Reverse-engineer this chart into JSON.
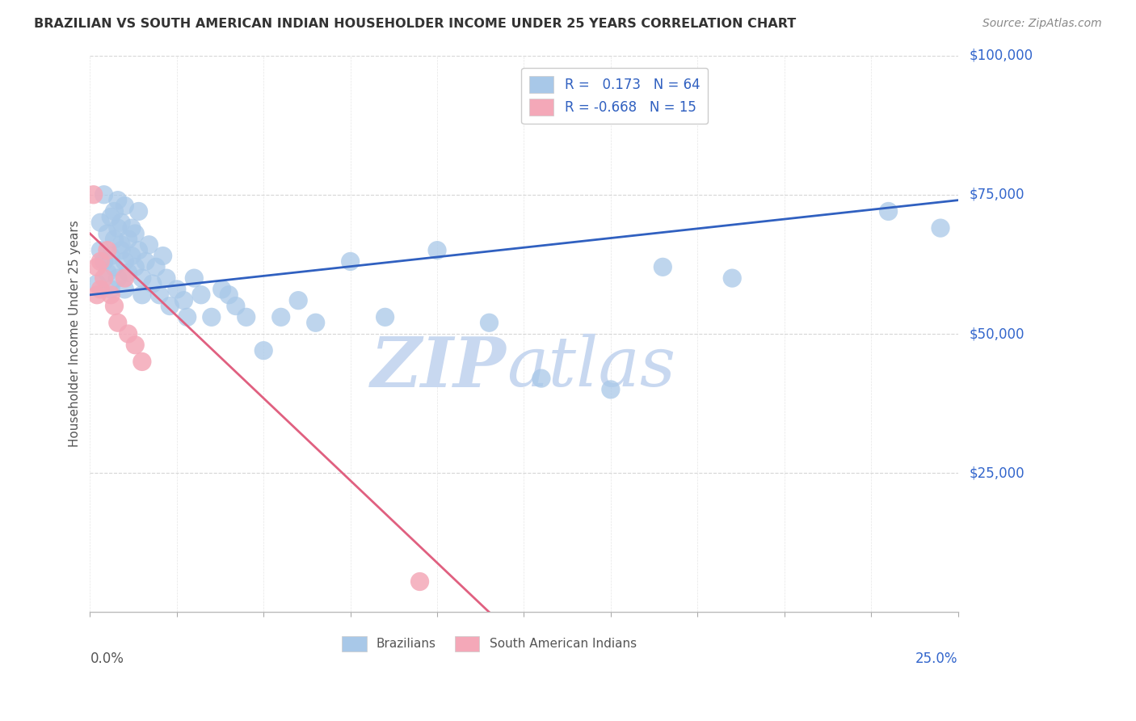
{
  "title": "BRAZILIAN VS SOUTH AMERICAN INDIAN HOUSEHOLDER INCOME UNDER 25 YEARS CORRELATION CHART",
  "source": "Source: ZipAtlas.com",
  "ylabel": "Householder Income Under 25 years",
  "xlim": [
    0.0,
    0.25
  ],
  "ylim": [
    0,
    100000
  ],
  "xtick_labels_shown": [
    "0.0%",
    "25.0%"
  ],
  "xtick_values_shown": [
    0.0,
    0.25
  ],
  "ytick_labels": [
    "$25,000",
    "$50,000",
    "$75,000",
    "$100,000"
  ],
  "ytick_values": [
    25000,
    50000,
    75000,
    100000
  ],
  "R_brazilian": 0.173,
  "N_brazilian": 64,
  "R_indian": -0.668,
  "N_indian": 15,
  "blue_color": "#A8C8E8",
  "pink_color": "#F4A8B8",
  "line_blue": "#3060C0",
  "line_pink": "#E06080",
  "watermark_zip": "ZIP",
  "watermark_atlas": "atlas",
  "watermark_color": "#C8D8F0",
  "background_color": "#FFFFFF",
  "grid_color": "#CCCCCC",
  "title_color": "#333333",
  "axis_label_color": "#555555",
  "ytick_color": "#3366CC",
  "xtick_color": "#555555",
  "brazilians_x": [
    0.002,
    0.003,
    0.003,
    0.004,
    0.004,
    0.005,
    0.005,
    0.006,
    0.006,
    0.006,
    0.007,
    0.007,
    0.007,
    0.008,
    0.008,
    0.008,
    0.009,
    0.009,
    0.009,
    0.01,
    0.01,
    0.01,
    0.011,
    0.011,
    0.012,
    0.012,
    0.013,
    0.013,
    0.014,
    0.014,
    0.015,
    0.015,
    0.016,
    0.017,
    0.018,
    0.019,
    0.02,
    0.021,
    0.022,
    0.023,
    0.025,
    0.027,
    0.028,
    0.03,
    0.032,
    0.035,
    0.038,
    0.04,
    0.042,
    0.045,
    0.05,
    0.055,
    0.06,
    0.065,
    0.075,
    0.085,
    0.1,
    0.115,
    0.13,
    0.15,
    0.165,
    0.185,
    0.23,
    0.245
  ],
  "brazilians_y": [
    59000,
    65000,
    70000,
    63000,
    75000,
    61000,
    68000,
    64000,
    71000,
    58000,
    72000,
    67000,
    62000,
    69000,
    74000,
    60000,
    65000,
    70000,
    66000,
    63000,
    58000,
    73000,
    67000,
    61000,
    64000,
    69000,
    62000,
    68000,
    65000,
    72000,
    60000,
    57000,
    63000,
    66000,
    59000,
    62000,
    57000,
    64000,
    60000,
    55000,
    58000,
    56000,
    53000,
    60000,
    57000,
    53000,
    58000,
    57000,
    55000,
    53000,
    47000,
    53000,
    56000,
    52000,
    63000,
    53000,
    65000,
    52000,
    42000,
    40000,
    62000,
    60000,
    72000,
    69000
  ],
  "indians_x": [
    0.001,
    0.002,
    0.002,
    0.003,
    0.003,
    0.004,
    0.005,
    0.006,
    0.007,
    0.008,
    0.01,
    0.011,
    0.013,
    0.015,
    0.095
  ],
  "indians_y": [
    75000,
    62000,
    57000,
    63000,
    58000,
    60000,
    65000,
    57000,
    55000,
    52000,
    60000,
    50000,
    48000,
    45000,
    5500
  ],
  "blue_line_x": [
    0.0,
    0.25
  ],
  "blue_line_y": [
    57000,
    74000
  ],
  "pink_line_x": [
    0.0,
    0.115
  ],
  "pink_line_y": [
    68000,
    0
  ]
}
